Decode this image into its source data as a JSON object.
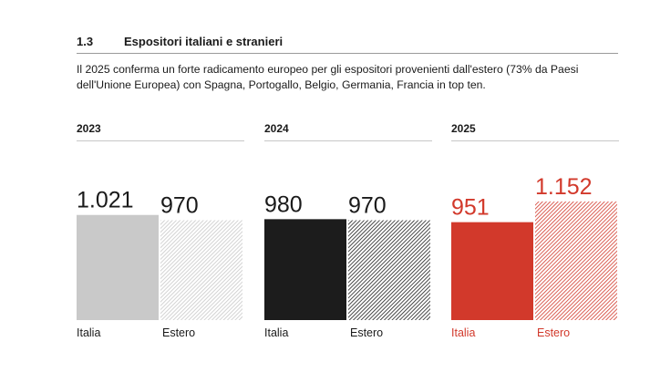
{
  "section": {
    "number": "1.3",
    "title": "Espositori italiani e stranieri",
    "intro": "Il 2025 conferma un forte radicamento europeo per gli espositori provenienti dall'estero (73% da Paesi dell'Unione Europea) con Spagna, Portogallo, Belgio, Germania, Francia in top ten."
  },
  "colors": {
    "grey": "#c9c9c9",
    "black": "#1c1c1c",
    "red": "#d2392b",
    "highlight_text": "#d2392b"
  },
  "chart_data": [
    {
      "type": "bar",
      "title": "2023",
      "categories": [
        "Italia",
        "Estero"
      ],
      "values": [
        1021,
        970
      ],
      "value_labels": [
        "1.021",
        "970"
      ],
      "fill": [
        "solid",
        "hatched"
      ],
      "color": "#c9c9c9"
    },
    {
      "type": "bar",
      "title": "2024",
      "categories": [
        "Italia",
        "Estero"
      ],
      "values": [
        980,
        970
      ],
      "value_labels": [
        "980",
        "970"
      ],
      "fill": [
        "solid",
        "hatched"
      ],
      "color": "#1c1c1c"
    },
    {
      "type": "bar",
      "title": "2025",
      "categories": [
        "Italia",
        "Estero"
      ],
      "values": [
        951,
        1152
      ],
      "value_labels": [
        "951",
        "1.152"
      ],
      "fill": [
        "solid",
        "hatched"
      ],
      "color": "#d2392b"
    }
  ]
}
